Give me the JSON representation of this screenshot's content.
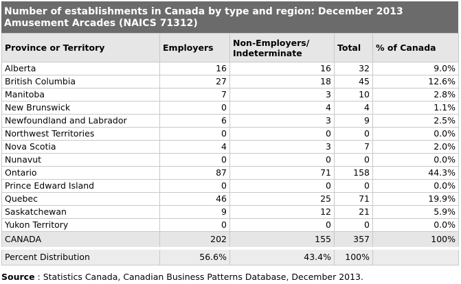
{
  "title_line1": "Number of establishments in Canada by type and region: December 2013",
  "title_line2": "Amusement Arcades (NAICS 71312)",
  "headers": {
    "province": "Province or Territory",
    "employers": "Employers",
    "non_emp_line1": "Non-Employers/",
    "non_emp_line2": "Indeterminate",
    "total": "Total",
    "pct": "% of Canada"
  },
  "rows": [
    {
      "name": "Alberta",
      "employers": "16",
      "non": "16",
      "total": "32",
      "pct": "9.0%"
    },
    {
      "name": "British Columbia",
      "employers": "27",
      "non": "18",
      "total": "45",
      "pct": "12.6%"
    },
    {
      "name": "Manitoba",
      "employers": "7",
      "non": "3",
      "total": "10",
      "pct": "2.8%"
    },
    {
      "name": "New Brunswick",
      "employers": "0",
      "non": "4",
      "total": "4",
      "pct": "1.1%"
    },
    {
      "name": "Newfoundland and Labrador",
      "employers": "6",
      "non": "3",
      "total": "9",
      "pct": "2.5%"
    },
    {
      "name": "Northwest Territories",
      "employers": "0",
      "non": "0",
      "total": "0",
      "pct": "0.0%"
    },
    {
      "name": "Nova Scotia",
      "employers": "4",
      "non": "3",
      "total": "7",
      "pct": "2.0%"
    },
    {
      "name": "Nunavut",
      "employers": "0",
      "non": "0",
      "total": "0",
      "pct": "0.0%"
    },
    {
      "name": "Ontario",
      "employers": "87",
      "non": "71",
      "total": "158",
      "pct": "44.3%"
    },
    {
      "name": "Prince Edward Island",
      "employers": "0",
      "non": "0",
      "total": "0",
      "pct": "0.0%"
    },
    {
      "name": "Quebec",
      "employers": "46",
      "non": "25",
      "total": "71",
      "pct": "19.9%"
    },
    {
      "name": "Saskatchewan",
      "employers": "9",
      "non": "12",
      "total": "21",
      "pct": "5.9%"
    },
    {
      "name": "Yukon Territory",
      "employers": "0",
      "non": "0",
      "total": "0",
      "pct": "0.0%"
    }
  ],
  "canada": {
    "name": "CANADA",
    "employers": "202",
    "non": "155",
    "total": "357",
    "pct": "100%"
  },
  "distribution": {
    "name": "Percent Distribution",
    "employers": "56.6%",
    "non": "43.4%",
    "total": "100%",
    "pct": ""
  },
  "source": {
    "label": "Source",
    "text": " : Statistics Canada, Canadian Business Patterns Database, December 2013."
  }
}
